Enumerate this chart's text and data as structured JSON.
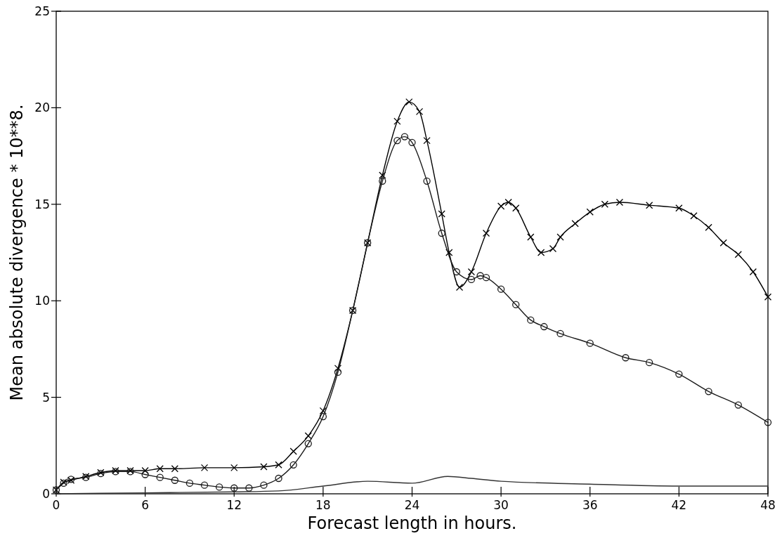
{
  "chart_data": {
    "type": "line",
    "xlabel": "Forecast length in hours.",
    "ylabel": "Mean absolute divergence * 10**8.",
    "xlim": [
      0,
      48
    ],
    "ylim": [
      0,
      25
    ],
    "xticks": [
      0,
      6,
      12,
      18,
      24,
      30,
      36,
      42,
      48
    ],
    "yticks": [
      0,
      5,
      10,
      15,
      20,
      25
    ],
    "grid": false,
    "line_style": "solid",
    "series": [
      {
        "color": "#000000",
        "marker": "cross",
        "x": [
          0,
          0.5,
          1,
          2,
          3,
          4,
          5,
          6,
          7,
          8,
          10,
          12,
          14,
          15,
          16,
          17,
          18,
          19,
          20,
          21,
          22,
          23,
          23.8,
          24.5,
          25,
          26,
          26.5,
          27.2,
          28,
          29,
          30,
          30.5,
          31,
          32,
          32.7,
          33.5,
          34,
          35,
          36,
          37,
          38,
          40,
          42,
          43,
          44,
          45,
          46,
          47,
          48
        ],
        "values": [
          0.2,
          0.6,
          0.7,
          0.9,
          1.1,
          1.2,
          1.2,
          1.2,
          1.3,
          1.3,
          1.35,
          1.35,
          1.4,
          1.5,
          2.2,
          3.0,
          4.3,
          6.5,
          9.5,
          13.0,
          16.5,
          19.3,
          20.3,
          19.8,
          18.3,
          14.5,
          12.5,
          10.7,
          11.5,
          13.5,
          14.9,
          15.1,
          14.8,
          13.3,
          12.5,
          12.7,
          13.3,
          14.0,
          14.6,
          15.0,
          15.1,
          14.95,
          14.8,
          14.4,
          13.8,
          13.0,
          12.4,
          11.5,
          10.2
        ]
      },
      {
        "color": "#1a1a1a",
        "marker": "circle",
        "x": [
          0,
          0.5,
          1,
          2,
          3,
          4,
          5,
          6,
          7,
          8,
          9,
          10,
          11,
          12,
          13,
          14,
          15,
          16,
          17,
          18,
          19,
          20,
          21,
          22,
          23,
          23.5,
          24,
          25,
          26,
          27,
          28,
          28.6,
          29,
          30,
          31,
          32,
          32.9,
          34,
          36,
          38.4,
          40,
          42,
          44,
          46,
          48
        ],
        "values": [
          0.2,
          0.55,
          0.75,
          0.85,
          1.05,
          1.15,
          1.15,
          1.0,
          0.85,
          0.7,
          0.55,
          0.45,
          0.35,
          0.3,
          0.3,
          0.45,
          0.8,
          1.5,
          2.6,
          4.0,
          6.3,
          9.5,
          13.0,
          16.2,
          18.3,
          18.5,
          18.2,
          16.2,
          13.5,
          11.5,
          11.1,
          11.3,
          11.2,
          10.6,
          9.8,
          9.0,
          8.66,
          8.3,
          7.8,
          7.05,
          6.8,
          6.2,
          5.3,
          4.6,
          3.7
        ]
      },
      {
        "color": "#333333",
        "marker": "none",
        "x": [
          0,
          6,
          12,
          15,
          18,
          21,
          24,
          26.4,
          28,
          30,
          36,
          42,
          48
        ],
        "values": [
          0,
          0.05,
          0.1,
          0.15,
          0.4,
          0.65,
          0.55,
          0.9,
          0.8,
          0.65,
          0.5,
          0.4,
          0.4
        ]
      }
    ]
  }
}
